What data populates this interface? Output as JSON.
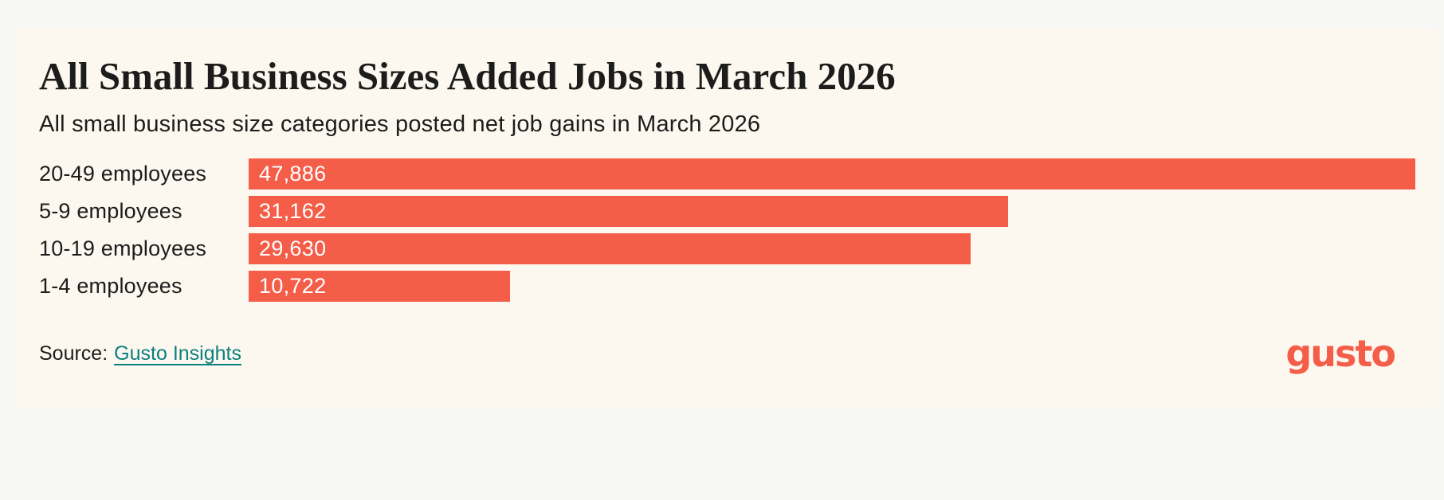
{
  "chart_data": {
    "type": "bar",
    "orientation": "horizontal",
    "title": "All Small Business Sizes Added Jobs in March 2026",
    "subtitle": "All small business size categories posted net job gains in March 2026",
    "categories": [
      "20-49 employees",
      "5-9 employees",
      "10-19 employees",
      "1-4 employees"
    ],
    "values": [
      47886,
      31162,
      29630,
      10722
    ],
    "value_labels": [
      "47,886",
      "31,162",
      "29,630",
      "10,722"
    ],
    "xlim": [
      0,
      47886
    ],
    "value_label_position": "inside-left",
    "grid": false,
    "legend": "none",
    "bar_color": "#f45d48",
    "value_label_color": "#ffffff"
  },
  "footer": {
    "source_prefix": "Source:",
    "source_link_label": "Gusto Insights",
    "logo_text": "gusto"
  },
  "colors": {
    "page_background": "#f7f7f5",
    "card_background": "#fdf8ef",
    "bar": "#f45d48",
    "text": "#1c1c1c",
    "link": "#0a8080",
    "logo": "#f45d48"
  }
}
